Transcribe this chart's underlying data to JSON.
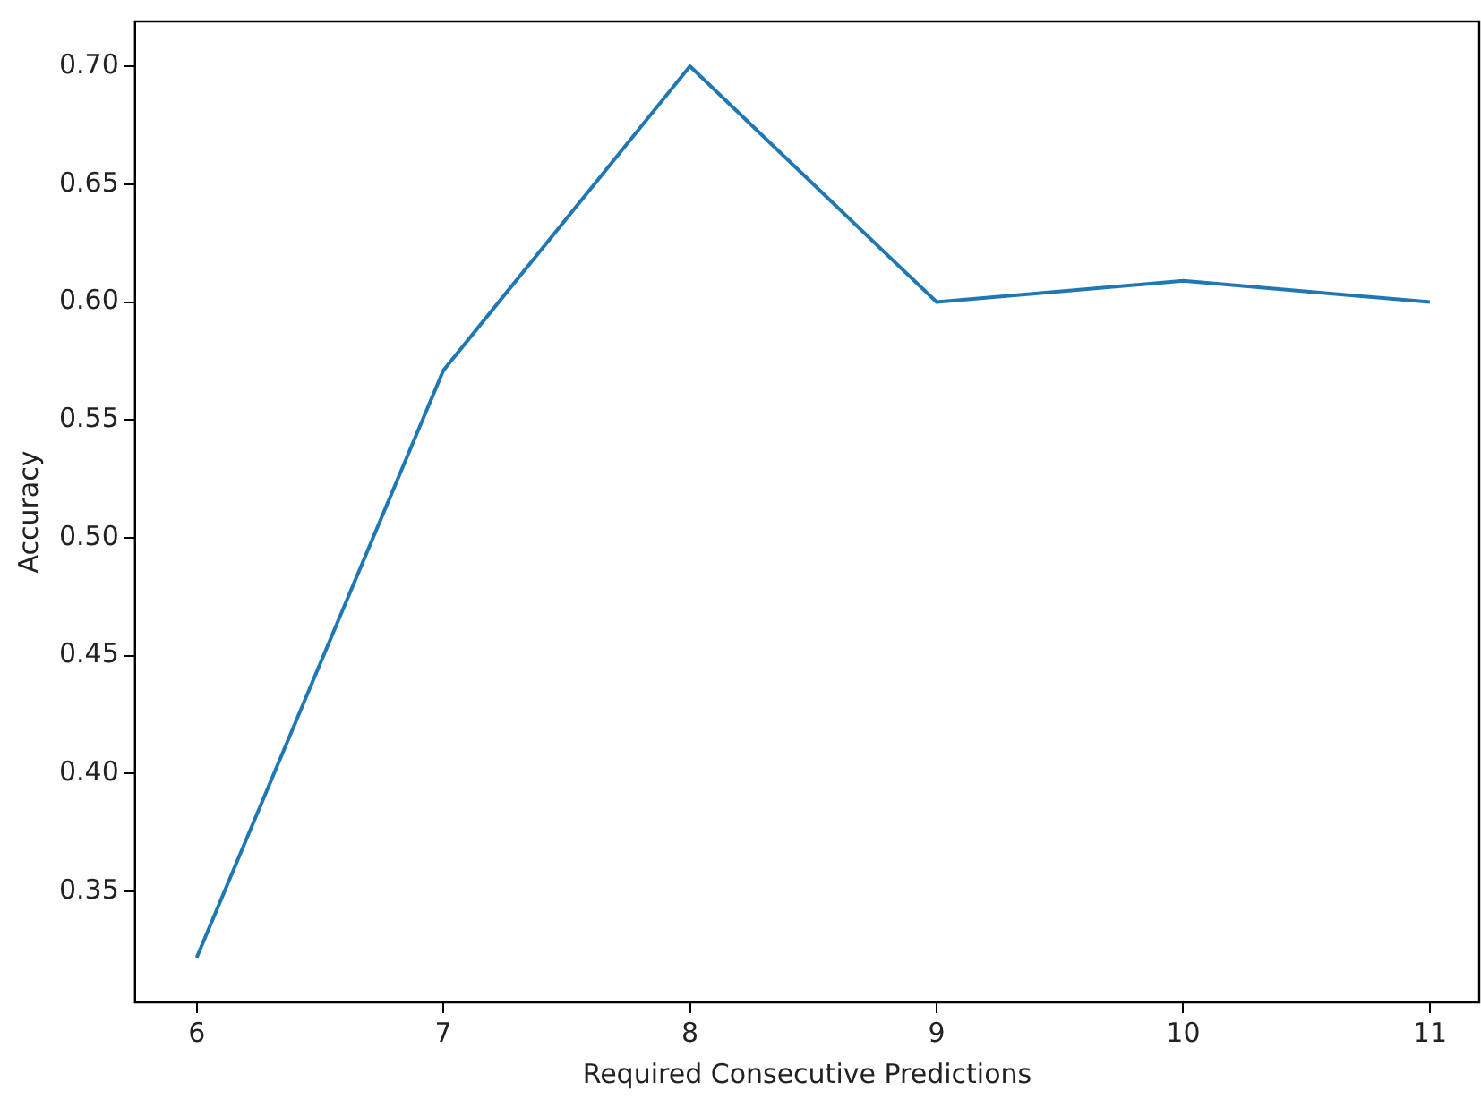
{
  "chart_data": {
    "type": "line",
    "xlabel": "Required Consecutive Predictions",
    "ylabel": "Accuracy",
    "x": [
      6,
      7,
      8,
      9,
      10,
      11
    ],
    "series": [
      {
        "color": "#1f77b4",
        "values": [
          0.322,
          0.571,
          0.7,
          0.6,
          0.609,
          0.6
        ]
      }
    ],
    "xlim": [
      5.75,
      11.2
    ],
    "xticks": [
      6,
      7,
      8,
      9,
      10,
      11
    ],
    "ylim": [
      0.303,
      0.719
    ],
    "yticks": [
      {
        "value": 0.35,
        "label": "0.35"
      },
      {
        "value": 0.4,
        "label": "0.40"
      },
      {
        "value": 0.45,
        "label": "0.45"
      },
      {
        "value": 0.5,
        "label": "0.50"
      },
      {
        "value": 0.55,
        "label": "0.55"
      },
      {
        "value": 0.6,
        "label": "0.60"
      },
      {
        "value": 0.65,
        "label": "0.65"
      },
      {
        "value": 0.7,
        "label": "0.70"
      }
    ],
    "grid": false,
    "legend": false,
    "marker": "none",
    "line_style": "solid"
  }
}
